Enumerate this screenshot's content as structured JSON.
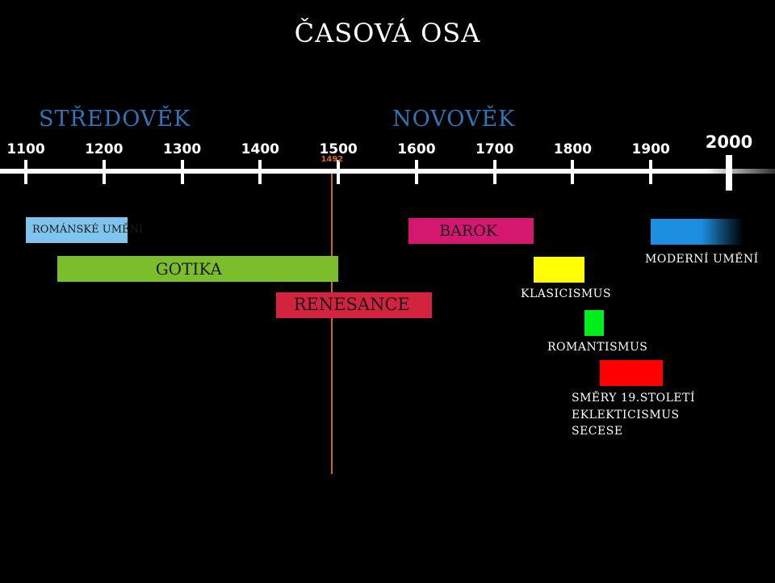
{
  "title": "ČASOVÁ OSA",
  "eras": [
    "STŘEDOVĚK",
    "NOVOVĚK"
  ],
  "axis": {
    "start": 1100,
    "end": 2000,
    "ticks": [
      "1100",
      "1200",
      "1300",
      "1400",
      "1500",
      "1600",
      "1700",
      "1800",
      "1900",
      "2000"
    ],
    "marker": {
      "year": 1492,
      "label": "1492",
      "color": "#c96a2a"
    }
  },
  "periods": {
    "romanske": {
      "label": "ROMÁNSKÉ UMĚNÍ",
      "start": 1100,
      "end": 1230,
      "color": "#7fc4ec"
    },
    "gotika": {
      "label": "GOTIKA",
      "start": 1140,
      "end": 1500,
      "color": "#7cbd2c"
    },
    "renesance": {
      "label": "RENESANCE",
      "start": 1420,
      "end": 1620,
      "color": "#d3233e"
    },
    "barok": {
      "label": "BAROK",
      "start": 1590,
      "end": 1750,
      "color": "#d4186f"
    },
    "klasicismus": {
      "label": "KLASICISMUS",
      "start": 1750,
      "end": 1815,
      "color": "#ffff00"
    },
    "romantismus": {
      "label": "ROMANTISMUS",
      "start": 1815,
      "end": 1840,
      "color": "#00ee1c"
    },
    "smery19": {
      "label": "SMĚRY 19.STOLETÍ",
      "extra": [
        "EKLEKTICISMUS",
        "SECESE"
      ],
      "start": 1835,
      "end": 1915,
      "color": "#ff0000"
    },
    "moderni": {
      "label": "MODERNÍ UMĚNÍ",
      "start": 1900,
      "end": 2020,
      "color": "#1c8fe0"
    }
  }
}
